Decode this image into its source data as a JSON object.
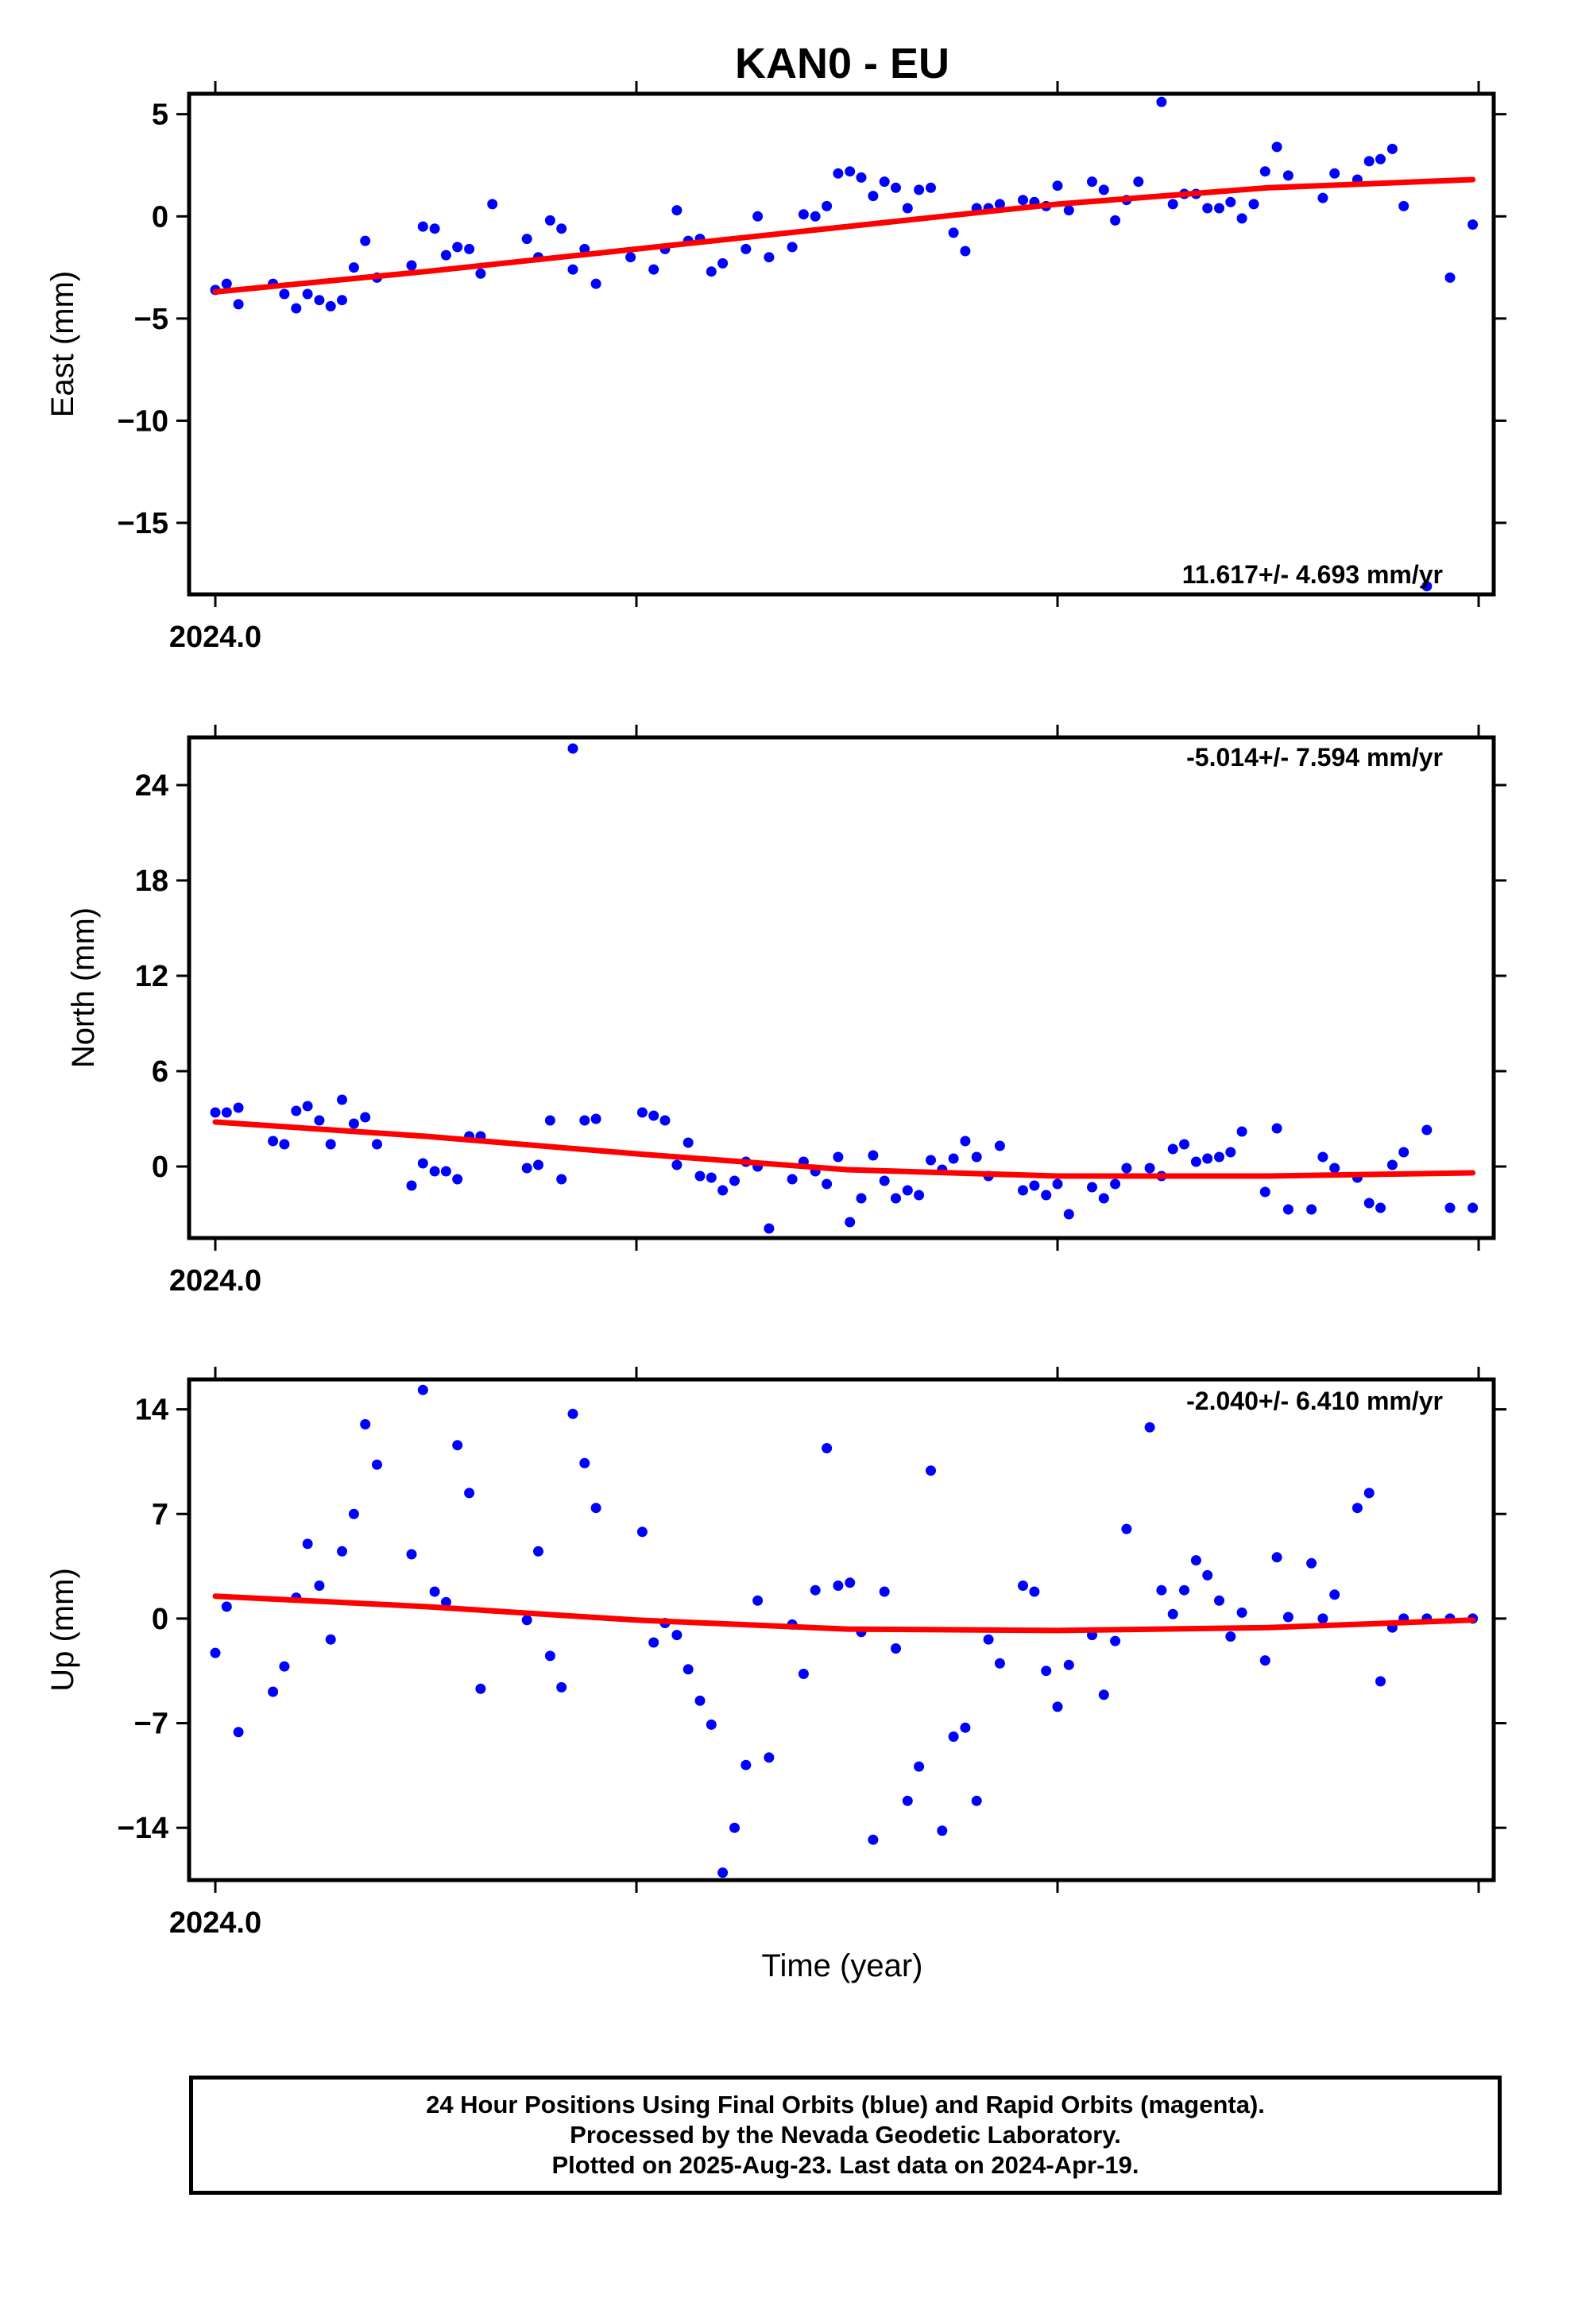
{
  "title": "KAN0 - EU",
  "xlabel": "Time (year)",
  "footer": {
    "line1": "24 Hour Positions Using Final Orbits (blue) and Rapid Orbits (magenta).",
    "line2": "Processed by the Nevada Geodetic Laboratory.",
    "line3": "Plotted on 2025-Aug-23. Last data on 2024-Apr-19."
  },
  "colors": {
    "points": "#0000ff",
    "fit": "#ff0000",
    "axes": "#000000"
  },
  "chart_data": [
    {
      "type": "scatter",
      "ylabel": "East (mm)",
      "rate_label": "11.617+/- 4.693 mm/yr",
      "xlim": [
        2024.0,
        2024.3
      ],
      "x_tick_labels": [
        {
          "x": 2024.0,
          "label": "2024.0"
        }
      ],
      "x_ticks": [
        2024.0,
        2024.1,
        2024.2,
        2024.3
      ],
      "ylim": [
        -18.5,
        6
      ],
      "yticks": [
        5,
        0,
        -5,
        -10,
        -15
      ],
      "ytick_labels": [
        "5",
        "0",
        "−5",
        "−10",
        "−15"
      ],
      "fit": {
        "x": [
          2024.0,
          2024.05,
          2024.1,
          2024.15,
          2024.2,
          2024.25,
          2024.2986
        ],
        "y": [
          -3.7,
          -2.7,
          -1.6,
          -0.5,
          0.6,
          1.4,
          1.8
        ]
      },
      "series": [
        {
          "x": [
            2024.0,
            2024.0027,
            2024.0055,
            2024.0137,
            2024.0164,
            2024.0192,
            2024.0219,
            2024.0247,
            2024.0274,
            2024.0301,
            2024.0329,
            2024.0356,
            2024.0384,
            2024.0466,
            2024.0493,
            2024.0521,
            2024.0548,
            2024.0575,
            2024.0603,
            2024.063,
            2024.0658,
            2024.074,
            2024.0767,
            2024.0795,
            2024.0822,
            2024.0849,
            2024.0877,
            2024.0904,
            2024.0986,
            2024.1041,
            2024.1068,
            2024.1096,
            2024.1123,
            2024.1151,
            2024.1178,
            2024.1205,
            2024.126,
            2024.1288,
            2024.1315,
            2024.137,
            2024.1397,
            2024.1425,
            2024.1452,
            2024.1479,
            2024.1507,
            2024.1534,
            2024.1562,
            2024.1589,
            2024.1616,
            2024.1644,
            2024.1671,
            2024.1699,
            2024.1753,
            2024.1781,
            2024.1808,
            2024.1836,
            2024.1863,
            2024.1918,
            2024.1945,
            2024.1973,
            2024.2,
            2024.2027,
            2024.2082,
            2024.211,
            2024.2137,
            2024.2164,
            2024.2192,
            2024.2247,
            2024.2274,
            2024.2301,
            2024.2329,
            2024.2356,
            2024.2384,
            2024.2411,
            2024.2438,
            2024.2466,
            2024.2493,
            2024.2521,
            2024.2548,
            2024.263,
            2024.2658,
            2024.2712,
            2024.274,
            2024.2767,
            2024.2795,
            2024.2822,
            2024.2877,
            2024.2932,
            2024.2986
          ],
          "y": [
            -3.6,
            -3.3,
            -4.3,
            -3.3,
            -3.8,
            -4.5,
            -3.8,
            -4.1,
            -4.4,
            -4.1,
            -2.5,
            -1.2,
            -3.0,
            -2.4,
            -0.5,
            -0.6,
            -1.9,
            -1.5,
            -1.6,
            -2.8,
            0.6,
            -1.1,
            -2.0,
            -0.2,
            -0.6,
            -2.6,
            -1.6,
            -3.3,
            -2.0,
            -2.6,
            -1.6,
            0.3,
            -1.2,
            -1.1,
            -2.7,
            -2.3,
            -1.6,
            0.0,
            -2.0,
            -1.5,
            0.1,
            0.0,
            0.5,
            2.1,
            2.2,
            1.9,
            1.0,
            1.7,
            1.4,
            0.4,
            1.3,
            1.4,
            -0.8,
            -1.7,
            0.4,
            0.4,
            0.6,
            0.8,
            0.7,
            0.5,
            1.5,
            0.3,
            1.7,
            1.3,
            -0.2,
            0.8,
            1.7,
            5.6,
            0.6,
            1.1,
            1.1,
            0.4,
            0.4,
            0.7,
            -0.1,
            0.6,
            2.2,
            3.4,
            2.0,
            0.9,
            2.1,
            1.8,
            2.7,
            2.8,
            3.3,
            0.5,
            -18.1,
            -3.0,
            -0.4
          ]
        }
      ]
    },
    {
      "type": "scatter",
      "ylabel": "North (mm)",
      "rate_label": "-5.014+/- 7.594 mm/yr",
      "xlim": [
        2024.0,
        2024.3
      ],
      "x_tick_labels": [
        {
          "x": 2024.0,
          "label": "2024.0"
        }
      ],
      "x_ticks": [
        2024.0,
        2024.1,
        2024.2,
        2024.3
      ],
      "ylim": [
        -4.5,
        27
      ],
      "yticks": [
        24,
        18,
        12,
        6,
        0
      ],
      "ytick_labels": [
        "24",
        "18",
        "12",
        "6",
        "0"
      ],
      "fit": {
        "x": [
          2024.0,
          2024.05,
          2024.1,
          2024.15,
          2024.2,
          2024.25,
          2024.2986
        ],
        "y": [
          2.8,
          1.9,
          0.8,
          -0.2,
          -0.6,
          -0.6,
          -0.4
        ]
      },
      "series": [
        {
          "x": [
            2024.0,
            2024.0027,
            2024.0055,
            2024.0137,
            2024.0164,
            2024.0192,
            2024.0219,
            2024.0247,
            2024.0274,
            2024.0301,
            2024.0329,
            2024.0356,
            2024.0384,
            2024.0466,
            2024.0493,
            2024.0521,
            2024.0548,
            2024.0575,
            2024.0603,
            2024.063,
            2024.074,
            2024.0767,
            2024.0795,
            2024.0822,
            2024.0849,
            2024.0877,
            2024.0904,
            2024.1014,
            2024.1041,
            2024.1068,
            2024.1096,
            2024.1123,
            2024.1151,
            2024.1178,
            2024.1205,
            2024.1233,
            2024.126,
            2024.1288,
            2024.1315,
            2024.137,
            2024.1397,
            2024.1425,
            2024.1452,
            2024.1479,
            2024.1507,
            2024.1534,
            2024.1562,
            2024.1589,
            2024.1616,
            2024.1644,
            2024.1671,
            2024.1699,
            2024.1726,
            2024.1753,
            2024.1781,
            2024.1808,
            2024.1836,
            2024.1863,
            2024.1918,
            2024.1945,
            2024.1973,
            2024.2,
            2024.2027,
            2024.2082,
            2024.211,
            2024.2137,
            2024.2164,
            2024.2219,
            2024.2247,
            2024.2274,
            2024.2301,
            2024.2329,
            2024.2356,
            2024.2384,
            2024.2411,
            2024.2438,
            2024.2493,
            2024.2521,
            2024.2548,
            2024.2603,
            2024.263,
            2024.2658,
            2024.2712,
            2024.274,
            2024.2767,
            2024.2795,
            2024.2822,
            2024.2877,
            2024.2932,
            2024.2986
          ],
          "y": [
            3.4,
            3.4,
            3.7,
            1.6,
            1.4,
            3.5,
            3.8,
            2.9,
            1.4,
            4.2,
            2.7,
            3.1,
            1.4,
            -1.2,
            0.2,
            -0.3,
            -0.3,
            -0.8,
            1.9,
            1.9,
            -0.1,
            0.1,
            2.9,
            -0.8,
            26.3,
            2.9,
            3.0,
            3.4,
            3.2,
            2.9,
            0.1,
            1.5,
            -0.6,
            -0.7,
            -1.5,
            -0.9,
            0.3,
            0.0,
            -3.9,
            -0.8,
            0.3,
            -0.3,
            -1.1,
            0.6,
            -3.5,
            -2.0,
            0.7,
            -0.9,
            -2.0,
            -1.5,
            -1.8,
            0.4,
            -0.2,
            0.5,
            1.6,
            0.6,
            -0.6,
            1.3,
            -1.5,
            -1.2,
            -1.8,
            -1.1,
            -3.0,
            -1.3,
            -2.0,
            -1.1,
            -0.1,
            -0.1,
            -0.6,
            1.1,
            1.4,
            0.3,
            0.5,
            0.6,
            0.9,
            2.2,
            -1.6,
            2.4,
            -2.7,
            -2.7,
            0.6,
            -0.1,
            -0.7,
            -2.3,
            -2.6,
            0.1,
            0.9,
            2.3,
            -2.6,
            -2.6
          ]
        }
      ]
    },
    {
      "type": "scatter",
      "ylabel": "Up (mm)",
      "rate_label": "-2.040+/- 6.410 mm/yr",
      "xlim": [
        2024.0,
        2024.3
      ],
      "x_tick_labels": [
        {
          "x": 2024.0,
          "label": "2024.0"
        }
      ],
      "x_ticks": [
        2024.0,
        2024.1,
        2024.2,
        2024.3
      ],
      "ylim": [
        -17.5,
        16
      ],
      "yticks": [
        14,
        7,
        0,
        -7,
        -14
      ],
      "ytick_labels": [
        "14",
        "7",
        "0",
        "−7",
        "−14"
      ],
      "fit": {
        "x": [
          2024.0,
          2024.05,
          2024.1,
          2024.15,
          2024.2,
          2024.25,
          2024.2986
        ],
        "y": [
          1.5,
          0.8,
          -0.1,
          -0.7,
          -0.8,
          -0.6,
          -0.1
        ]
      },
      "series": [
        {
          "x": [
            2024.0,
            2024.0027,
            2024.0055,
            2024.0137,
            2024.0164,
            2024.0192,
            2024.0219,
            2024.0247,
            2024.0274,
            2024.0301,
            2024.0329,
            2024.0356,
            2024.0384,
            2024.0466,
            2024.0493,
            2024.0521,
            2024.0548,
            2024.0575,
            2024.0603,
            2024.063,
            2024.074,
            2024.0767,
            2024.0795,
            2024.0822,
            2024.0849,
            2024.0877,
            2024.0904,
            2024.1014,
            2024.1041,
            2024.1068,
            2024.1096,
            2024.1123,
            2024.1151,
            2024.1178,
            2024.1205,
            2024.1233,
            2024.126,
            2024.1288,
            2024.1315,
            2024.137,
            2024.1397,
            2024.1425,
            2024.1452,
            2024.1479,
            2024.1507,
            2024.1534,
            2024.1562,
            2024.1589,
            2024.1616,
            2024.1644,
            2024.1671,
            2024.1699,
            2024.1726,
            2024.1753,
            2024.1781,
            2024.1808,
            2024.1836,
            2024.1863,
            2024.1918,
            2024.1945,
            2024.1973,
            2024.2,
            2024.2027,
            2024.2082,
            2024.211,
            2024.2137,
            2024.2164,
            2024.2219,
            2024.2247,
            2024.2274,
            2024.2301,
            2024.2329,
            2024.2356,
            2024.2384,
            2024.2411,
            2024.2438,
            2024.2493,
            2024.2521,
            2024.2548,
            2024.2603,
            2024.263,
            2024.2658,
            2024.2712,
            2024.274,
            2024.2767,
            2024.2795,
            2024.2822,
            2024.2877,
            2024.2932,
            2024.2986
          ],
          "y": [
            -2.3,
            0.8,
            -7.6,
            -4.9,
            -3.2,
            1.4,
            5.0,
            2.2,
            -1.4,
            4.5,
            7.0,
            13.0,
            10.3,
            4.3,
            15.3,
            1.8,
            1.1,
            11.6,
            8.4,
            -4.7,
            -0.1,
            4.5,
            -2.5,
            -4.6,
            13.7,
            10.4,
            7.4,
            5.8,
            -1.6,
            -0.3,
            -1.1,
            -3.4,
            -5.5,
            -7.1,
            -17.0,
            -14.0,
            -9.8,
            1.2,
            -9.3,
            -0.4,
            -3.7,
            1.9,
            11.4,
            2.2,
            2.4,
            -0.9,
            -14.8,
            1.8,
            -2.0,
            -12.2,
            -9.9,
            9.9,
            -14.2,
            -7.9,
            -7.3,
            -12.2,
            -1.4,
            -3.0,
            2.2,
            1.8,
            -3.5,
            -5.9,
            -3.1,
            -1.1,
            -5.1,
            -1.5,
            6.0,
            12.8,
            1.9,
            0.3,
            1.9,
            3.9,
            2.9,
            1.2,
            -1.2,
            0.4,
            -2.8,
            4.1,
            0.1,
            3.7,
            0.0,
            1.6,
            7.4,
            8.4,
            -4.2,
            -0.6,
            0.0,
            0.0,
            0.0,
            0.0
          ]
        }
      ]
    }
  ]
}
